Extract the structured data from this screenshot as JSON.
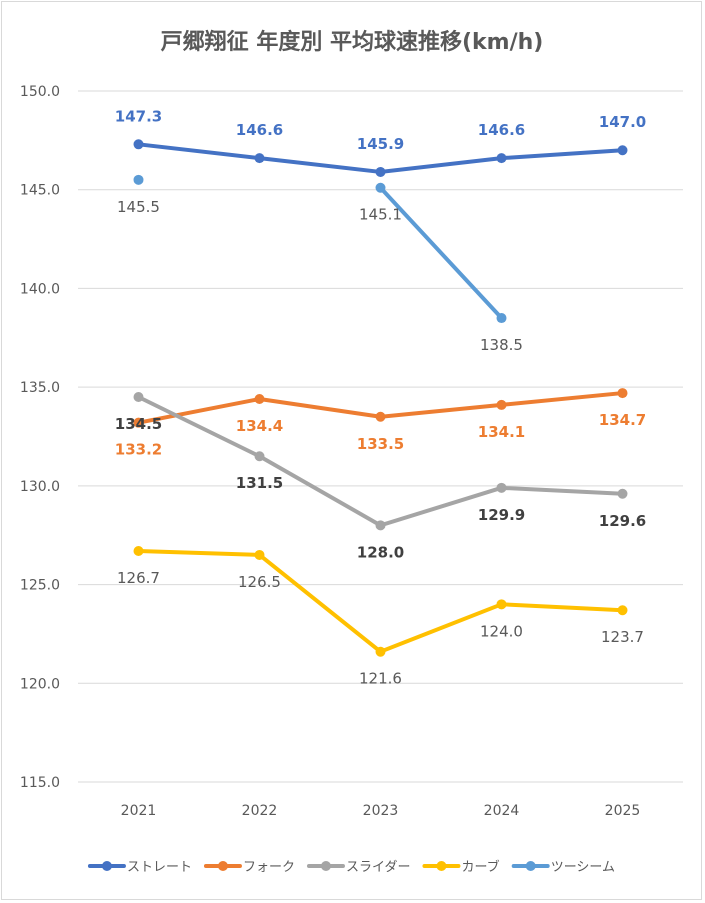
{
  "chart_data": {
    "type": "line",
    "title": "戸郷翔征 年度別 平均球速推移(km/h)",
    "xlabel": "",
    "ylabel": "",
    "categories": [
      "2021",
      "2022",
      "2023",
      "2024",
      "2025"
    ],
    "ylim": [
      115.0,
      150.0
    ],
    "yticks": [
      "150.0",
      "145.0",
      "140.0",
      "135.0",
      "130.0",
      "125.0",
      "120.0",
      "115.0"
    ],
    "grid": true,
    "legend_position": "bottom",
    "series": [
      {
        "name": "ストレート",
        "color": "#4472c4",
        "values": [
          147.3,
          146.6,
          145.9,
          146.6,
          147.0
        ],
        "labels": [
          "147.3",
          "146.6",
          "145.9",
          "146.6",
          "147.0"
        ],
        "label_color": "#4472c4",
        "label_bold": true,
        "label_pos": "above"
      },
      {
        "name": "フォーク",
        "color": "#ed7d31",
        "values": [
          133.2,
          134.4,
          133.5,
          134.1,
          134.7
        ],
        "labels": [
          "133.2",
          "134.4",
          "133.5",
          "134.1",
          "134.7"
        ],
        "label_color": "#ed7d31",
        "label_bold": true,
        "label_pos": "below"
      },
      {
        "name": "スライダー",
        "color": "#a5a5a5",
        "values": [
          134.5,
          131.5,
          128.0,
          129.9,
          129.6
        ],
        "labels": [
          "134.5",
          "131.5",
          "128.0",
          "129.9",
          "129.6"
        ],
        "label_color": "#404040",
        "label_bold": true,
        "label_pos": "below"
      },
      {
        "name": "カーブ",
        "color": "#ffc000",
        "values": [
          126.7,
          126.5,
          121.6,
          124.0,
          123.7
        ],
        "labels": [
          "126.7",
          "126.5",
          "121.6",
          "124.0",
          "123.7"
        ],
        "label_color": "#595959",
        "label_bold": false,
        "label_pos": "below"
      },
      {
        "name": "ツーシーム",
        "color": "#5b9bd5",
        "values": [
          145.5,
          null,
          145.1,
          138.5,
          null
        ],
        "labels": [
          "145.5",
          null,
          "145.1",
          "138.5",
          null
        ],
        "label_color": "#595959",
        "label_bold": false,
        "label_pos": "below"
      }
    ]
  }
}
